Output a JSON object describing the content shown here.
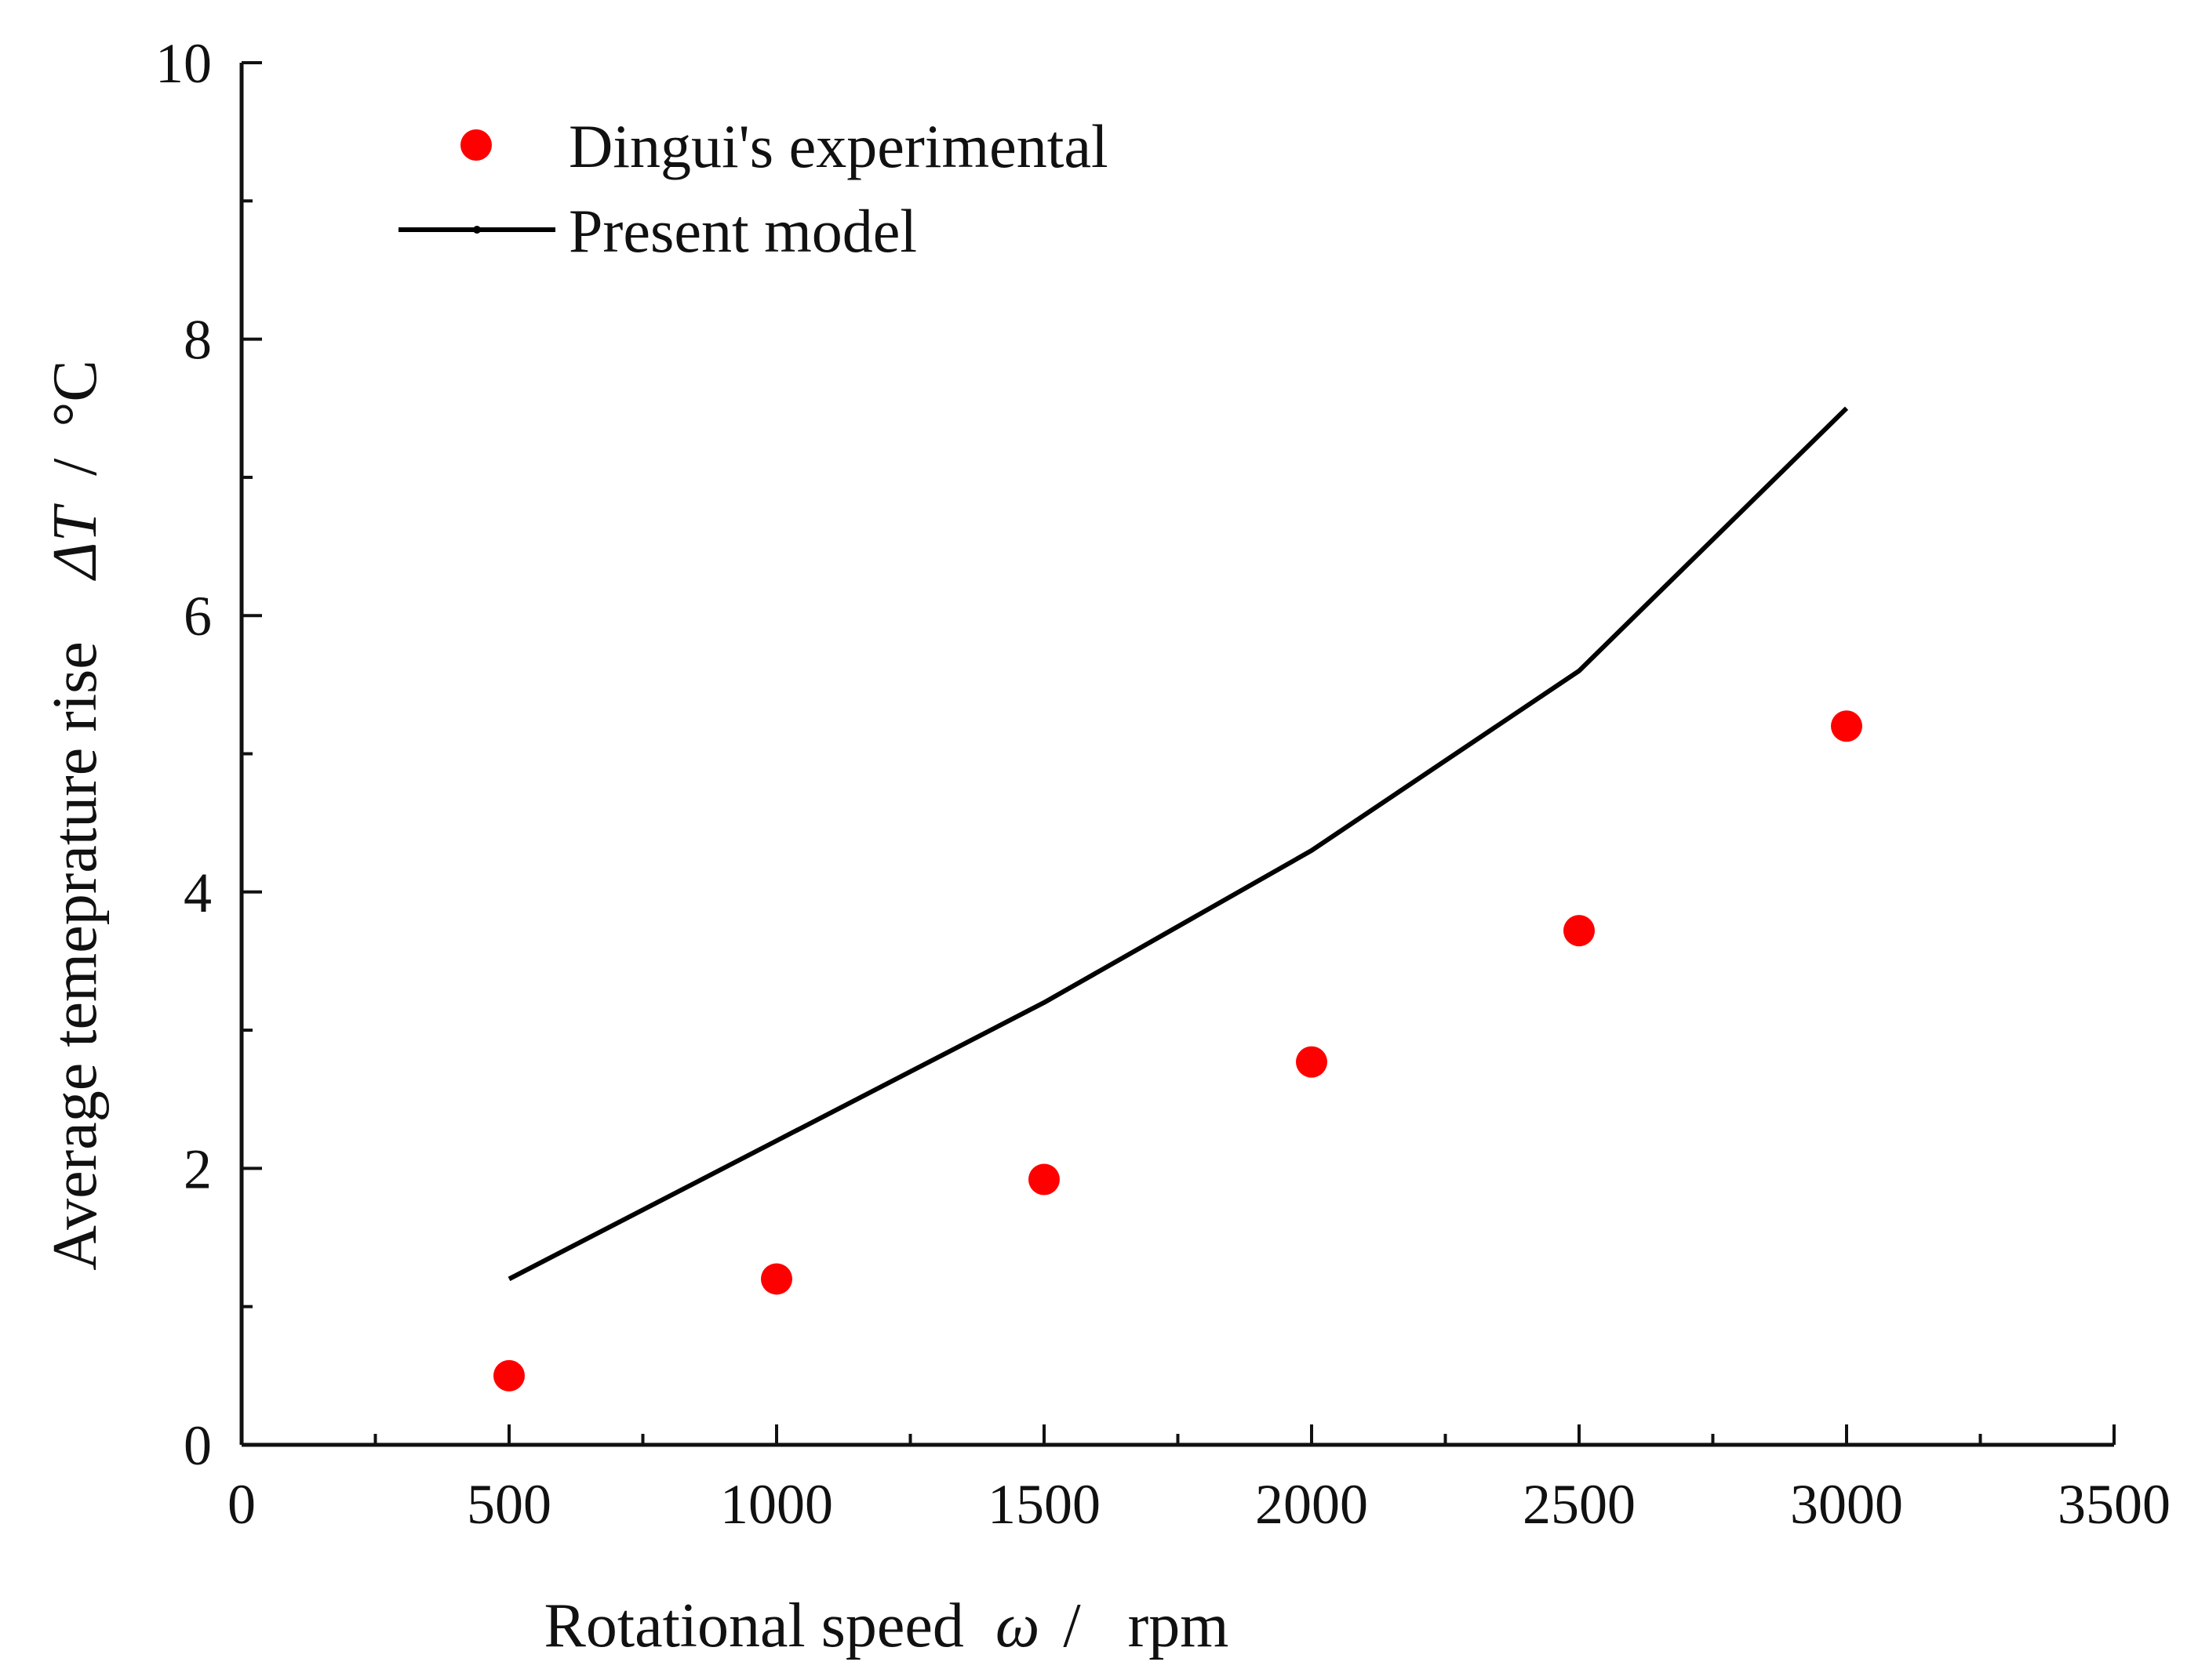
{
  "chart_data": {
    "type": "scatter",
    "xlabel_parts": [
      "Rotational speed",
      "ω",
      "/",
      "rpm"
    ],
    "ylabel_parts": [
      "Average temeprature rise",
      "ΔT",
      "/",
      "°C"
    ],
    "xlim": [
      0,
      3500
    ],
    "ylim": [
      0,
      10
    ],
    "x_ticks": [
      "0",
      "500",
      "1000",
      "1500",
      "2000",
      "2500",
      "3000",
      "3500"
    ],
    "y_ticks": [
      "0",
      "2",
      "4",
      "6",
      "8",
      "10"
    ],
    "grid": false,
    "legend_position": "top-left",
    "series": [
      {
        "name": "Dingui's experimental",
        "type": "scatter",
        "color": "#ff0000",
        "x": [
          500,
          1000,
          1500,
          2000,
          2500,
          3000
        ],
        "y": [
          0.5,
          1.2,
          1.92,
          2.77,
          3.72,
          5.2
        ]
      },
      {
        "name": "Present model",
        "type": "line",
        "color": "#000000",
        "x": [
          500,
          1000,
          1500,
          2000,
          2500,
          3000
        ],
        "y": [
          1.2,
          2.2,
          3.2,
          4.3,
          5.6,
          7.5
        ]
      }
    ]
  }
}
